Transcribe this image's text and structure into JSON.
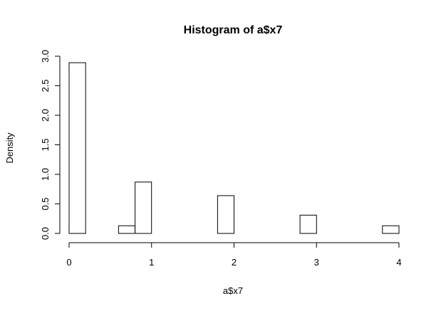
{
  "chart_data": {
    "type": "bar",
    "title": "Histogram of a$x7",
    "xlabel": "a$x7",
    "ylabel": "Density",
    "xlim": [
      0,
      4
    ],
    "ylim": [
      0,
      3.0
    ],
    "xticks": [
      0,
      1,
      2,
      3,
      4
    ],
    "xtick_labels": [
      "0",
      "1",
      "2",
      "3",
      "4"
    ],
    "yticks": [
      0,
      0.5,
      1.0,
      1.5,
      2.0,
      2.5,
      3.0
    ],
    "ytick_labels": [
      "0.0",
      "0.5",
      "1.0",
      "1.5",
      "2.0",
      "2.5",
      "3.0"
    ],
    "grid": false,
    "bins": [
      {
        "x0": 0.0,
        "x1": 0.2,
        "value": 2.89
      },
      {
        "x0": 0.6,
        "x1": 0.8,
        "value": 0.13
      },
      {
        "x0": 0.8,
        "x1": 1.0,
        "value": 0.87
      },
      {
        "x0": 1.8,
        "x1": 2.0,
        "value": 0.64
      },
      {
        "x0": 2.8,
        "x1": 3.0,
        "value": 0.31
      },
      {
        "x0": 3.8,
        "x1": 4.0,
        "value": 0.13
      }
    ]
  }
}
